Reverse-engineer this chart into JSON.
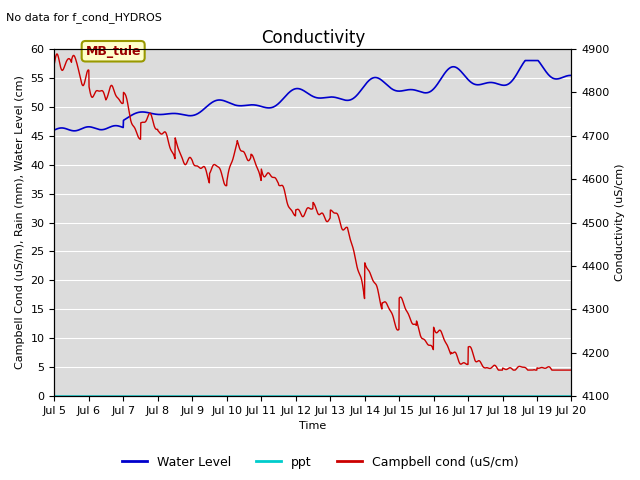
{
  "title": "Conductivity",
  "top_left_text": "No data for f_cond_HYDROS",
  "ylabel_left": "Campbell Cond (uS/m), Rain (mm), Water Level (cm)",
  "ylabel_right": "Conductivity (uS/cm)",
  "xlabel": "Time",
  "annotation_text": "MB_tule",
  "ylim_left": [
    0,
    60
  ],
  "ylim_right": [
    4100,
    4900
  ],
  "yticks_left": [
    0,
    5,
    10,
    15,
    20,
    25,
    30,
    35,
    40,
    45,
    50,
    55,
    60
  ],
  "yticks_right": [
    4100,
    4200,
    4300,
    4400,
    4500,
    4600,
    4700,
    4800,
    4900
  ],
  "background_color": "#dcdcdc",
  "water_level_color": "#0000cc",
  "ppt_color": "#00cccc",
  "campbell_cond_color": "#cc0000",
  "legend_entries": [
    "Water Level",
    "ppt",
    "Campbell cond (uS/cm)"
  ],
  "title_fontsize": 12,
  "axis_label_fontsize": 8,
  "tick_fontsize": 8,
  "annotation_facecolor": "#ffffcc",
  "annotation_edgecolor": "#999900",
  "annotation_textcolor": "#990000"
}
